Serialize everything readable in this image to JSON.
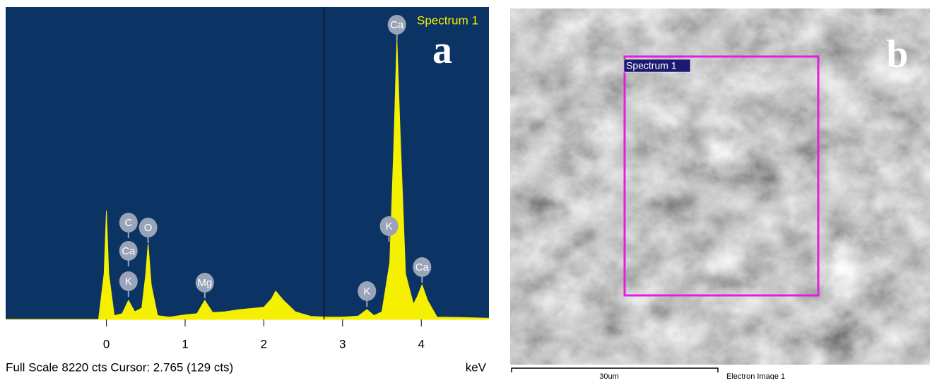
{
  "chart_data": {
    "type": "area",
    "legend": "Spectrum 1",
    "panel_label": "a",
    "color": "#f5f000",
    "background": "#0b3364",
    "x_unit": "keV",
    "footer": "Full Scale 8220 cts Cursor: 2.765  (129 cts)",
    "cursor": 2.765,
    "xlim": [
      -1.28,
      4.86
    ],
    "ylim": [
      0,
      8220
    ],
    "xticks": [
      0,
      1,
      2,
      3,
      4
    ],
    "x": [
      -1.28,
      -0.1,
      -0.03,
      0.0,
      0.03,
      0.1,
      0.2,
      0.28,
      0.36,
      0.45,
      0.5,
      0.53,
      0.57,
      0.65,
      0.8,
      1.0,
      1.15,
      1.25,
      1.35,
      1.5,
      1.7,
      1.9,
      2.0,
      2.1,
      2.15,
      2.25,
      2.4,
      2.6,
      2.8,
      3.0,
      3.2,
      3.31,
      3.4,
      3.5,
      3.6,
      3.65,
      3.69,
      3.73,
      3.8,
      3.9,
      3.95,
      4.01,
      4.08,
      4.2,
      4.5,
      4.86
    ],
    "values": [
      0,
      0,
      1200,
      2860,
      1200,
      100,
      150,
      500,
      200,
      300,
      1200,
      1990,
      900,
      100,
      60,
      120,
      150,
      500,
      180,
      200,
      260,
      300,
      320,
      550,
      745,
      500,
      200,
      80,
      60,
      60,
      90,
      260,
      100,
      200,
      1500,
      4500,
      7380,
      5000,
      1200,
      400,
      600,
      910,
      500,
      60,
      50,
      30
    ],
    "peak_labels": [
      {
        "text": "C",
        "x": 0.28
      },
      {
        "text": "Ca",
        "x": 0.28
      },
      {
        "text": "K",
        "x": 0.28
      },
      {
        "text": "O",
        "x": 0.53
      },
      {
        "text": "Mg",
        "x": 1.25
      },
      {
        "text": "K",
        "x": 3.31
      },
      {
        "text": "K",
        "x": 3.59
      },
      {
        "text": "Ca",
        "x": 3.69
      },
      {
        "text": "Ca",
        "x": 4.01
      }
    ]
  },
  "image_panel": {
    "panel_label": "b",
    "region_label": "Spectrum 1",
    "scale_bar": "30um",
    "caption": "Electron Image 1"
  }
}
